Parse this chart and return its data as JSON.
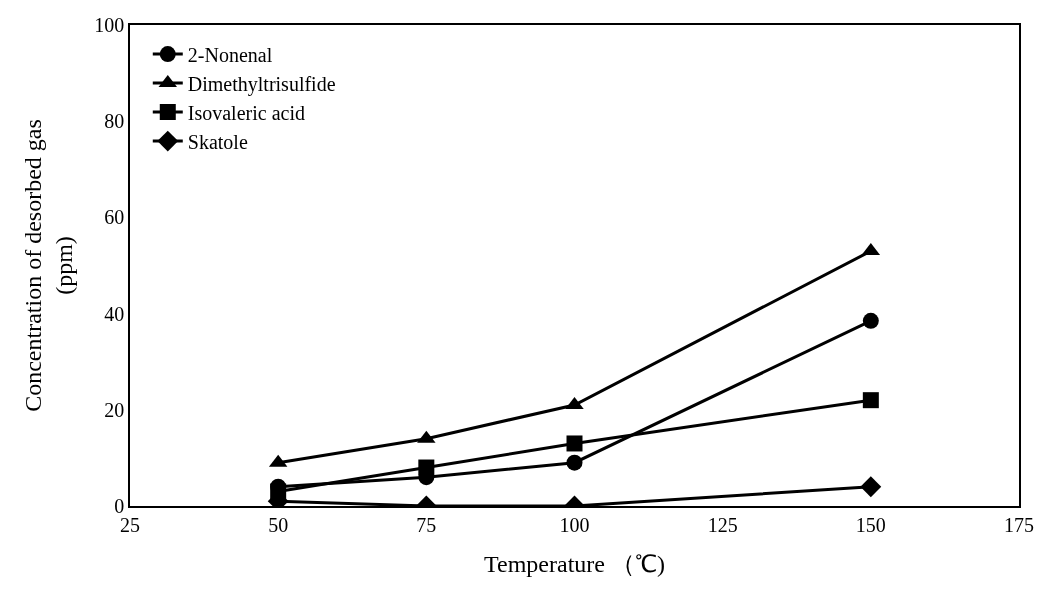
{
  "chart_data": {
    "type": "line",
    "xlabel": "Temperature （℃)",
    "ylabel": "Concentration of desorbed gas\n(ppm)",
    "x": [
      50,
      75,
      100,
      150
    ],
    "series": [
      {
        "name": "2-Nonenal",
        "color": "#000000",
        "marker": "circle",
        "values": [
          4,
          6,
          9,
          38.5
        ]
      },
      {
        "name": "Dimethyltrisulfide",
        "color": "#000000",
        "marker": "triangle",
        "values": [
          9,
          14,
          21,
          53
        ]
      },
      {
        "name": "Isovaleric acid",
        "color": "#000000",
        "marker": "square",
        "values": [
          3,
          8,
          13,
          22
        ]
      },
      {
        "name": "Skatole",
        "color": "#000000",
        "marker": "diamond",
        "values": [
          1,
          0,
          0,
          4
        ]
      }
    ],
    "xlim": [
      25,
      175
    ],
    "xticks": [
      25,
      50,
      75,
      100,
      125,
      150,
      175
    ],
    "ylim": [
      0,
      100
    ],
    "yticks": [
      0,
      20,
      40,
      60,
      80,
      100
    ],
    "legend": "top left",
    "line_style": "solid"
  }
}
